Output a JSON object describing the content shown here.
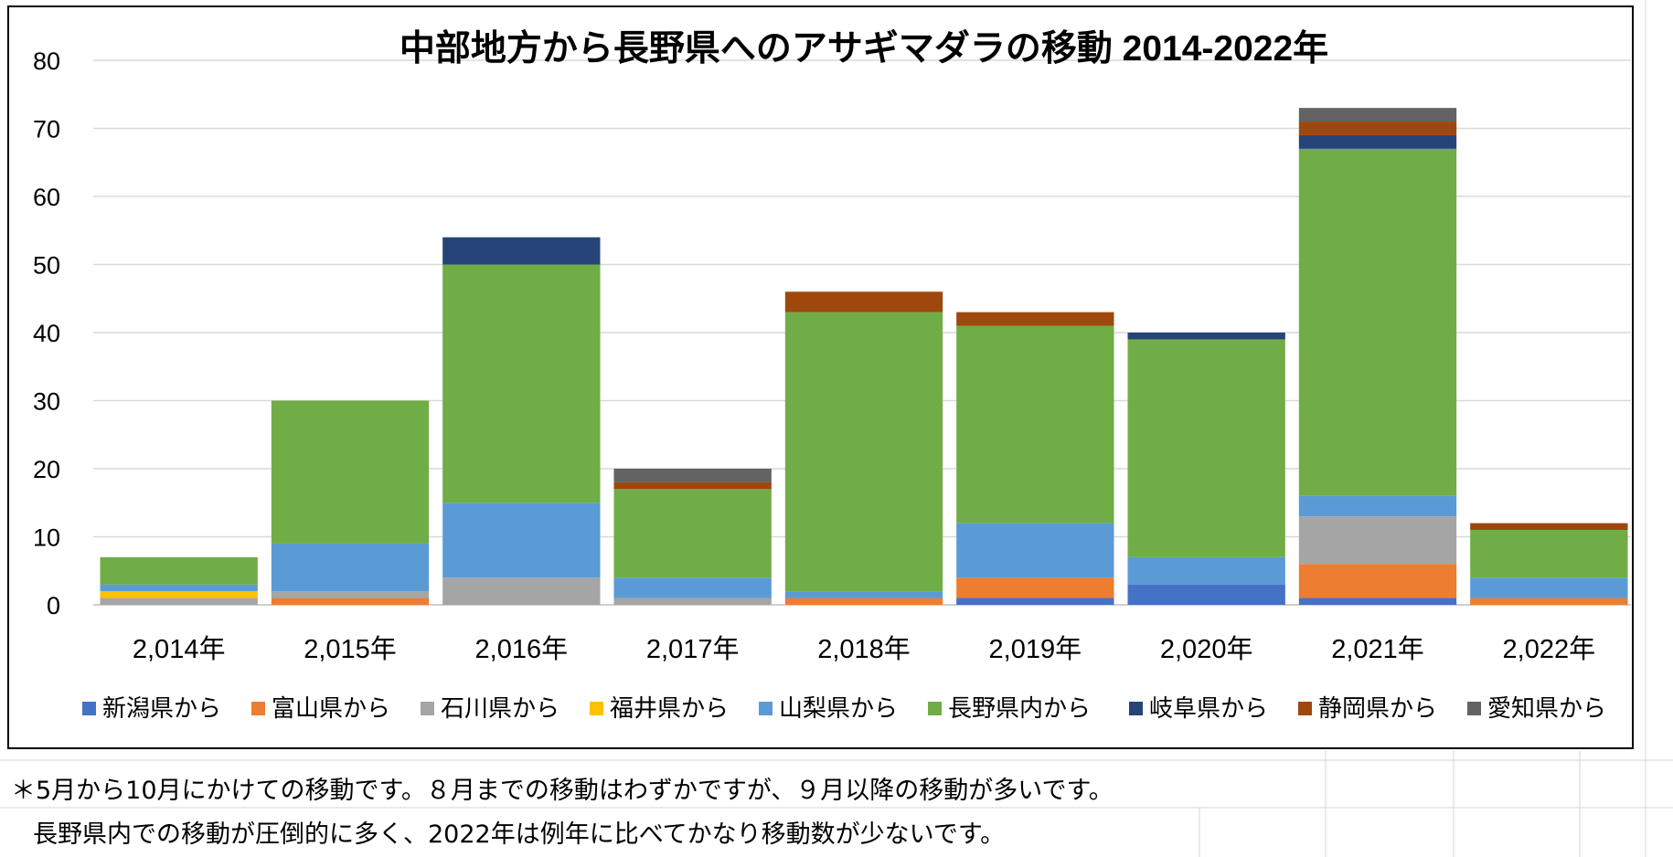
{
  "chart_data": {
    "type": "bar",
    "stacked": true,
    "title": "中部地方から長野県へのアサギマダラの移動 2014-2022年",
    "categories": [
      "2,014年",
      "2,015年",
      "2,016年",
      "2,017年",
      "2,018年",
      "2,019年",
      "2,020年",
      "2,021年",
      "2,022年"
    ],
    "ylim": [
      0,
      80
    ],
    "yticks": [
      "0",
      "10",
      "20",
      "30",
      "40",
      "50",
      "60",
      "70",
      "80"
    ],
    "grid": true,
    "legend_position": "bottom",
    "series": [
      {
        "name": "新潟県から",
        "color": "#4472c4",
        "values": [
          0,
          0,
          0,
          0,
          0,
          1,
          3,
          1,
          0
        ]
      },
      {
        "name": "富山県から",
        "color": "#ed7d31",
        "values": [
          0,
          1,
          0,
          0,
          1,
          3,
          0,
          5,
          1
        ]
      },
      {
        "name": "石川県から",
        "color": "#a5a5a5",
        "values": [
          1,
          1,
          4,
          1,
          0,
          0,
          0,
          7,
          0
        ]
      },
      {
        "name": "福井県から",
        "color": "#ffc000",
        "values": [
          1,
          0,
          0,
          0,
          0,
          0,
          0,
          0,
          0
        ]
      },
      {
        "name": "山梨県から",
        "color": "#5b9bd5",
        "values": [
          1,
          7,
          11,
          3,
          1,
          8,
          4,
          3,
          3
        ]
      },
      {
        "name": "長野県内から",
        "color": "#70ad47",
        "values": [
          4,
          21,
          35,
          13,
          41,
          29,
          32,
          51,
          7
        ]
      },
      {
        "name": "岐阜県から",
        "color": "#264478",
        "values": [
          0,
          0,
          4,
          0,
          0,
          0,
          1,
          2,
          0
        ]
      },
      {
        "name": "静岡県から",
        "color": "#9e480e",
        "values": [
          0,
          0,
          0,
          1,
          3,
          2,
          0,
          2,
          1
        ]
      },
      {
        "name": "愛知県から",
        "color": "#636363",
        "values": [
          0,
          0,
          0,
          2,
          0,
          0,
          0,
          2,
          0
        ]
      }
    ]
  },
  "notes": {
    "line1": "＊5月から10月にかけての移動です。８月までの移動はわずかですが、９月以降の移動が多いです。",
    "line2": "長野県内での移動が圧倒的に多く、2022年は例年に比べてかなり移動数が少ないです。"
  }
}
